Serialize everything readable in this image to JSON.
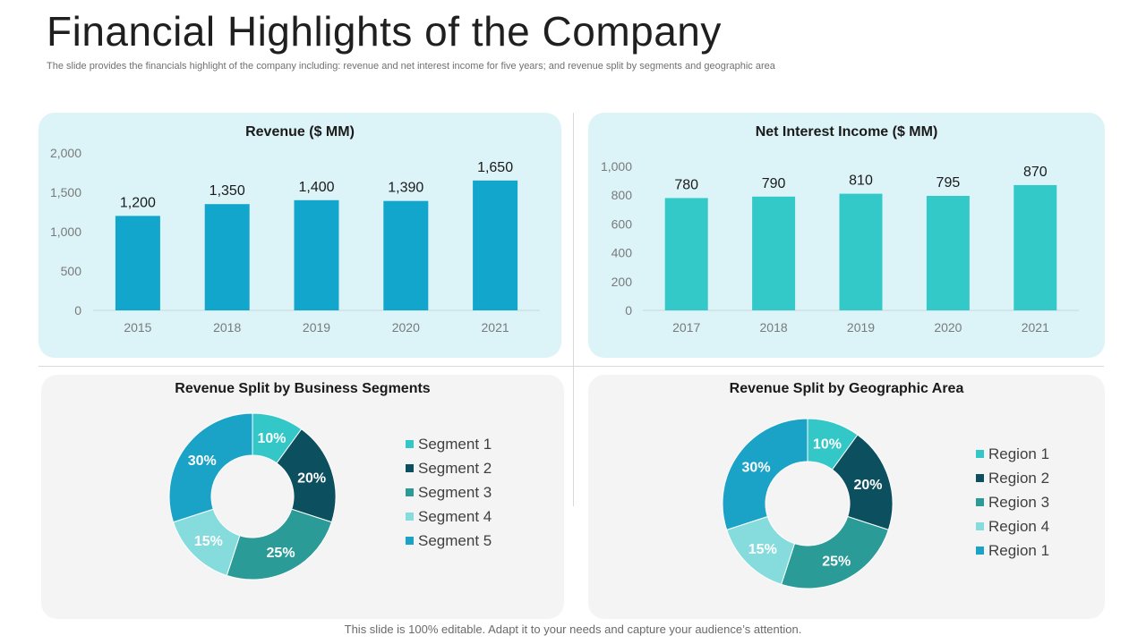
{
  "page": {
    "title": "Financial Highlights of the Company",
    "subtitle": "The slide provides the financials highlight of the company including: revenue and net interest income for five years; and revenue split by segments and geographic area",
    "footer": "This slide is 100% editable. Adapt it to your needs and capture your audience’s attention."
  },
  "colors": {
    "revenue_bar": "#12a6cc",
    "nii_bar": "#33c9c9",
    "donut": [
      "#33c7c7",
      "#0c4f5f",
      "#2a9b96",
      "#86dcdc",
      "#1aa3c7"
    ]
  },
  "chart_data": [
    {
      "type": "bar",
      "title": "Revenue ($ MM)",
      "categories": [
        "2015",
        "2018",
        "2019",
        "2020",
        "2021"
      ],
      "values": [
        1200,
        1350,
        1400,
        1390,
        1650
      ],
      "value_labels": [
        "1,200",
        "1,350",
        "1,400",
        "1,390",
        "1,650"
      ],
      "ylim": [
        0,
        2000
      ],
      "yticks": [
        0,
        500,
        1000,
        1500,
        2000
      ],
      "ytick_labels": [
        "0",
        "500",
        "1,000",
        "1,500",
        "2,000"
      ],
      "xlabel": "",
      "ylabel": ""
    },
    {
      "type": "bar",
      "title": "Net Interest  Income ($ MM)",
      "categories": [
        "2017",
        "2018",
        "2019",
        "2020",
        "2021"
      ],
      "values": [
        780,
        790,
        810,
        795,
        870
      ],
      "value_labels": [
        "780",
        "790",
        "810",
        "795",
        "870"
      ],
      "ylim": [
        0,
        1000
      ],
      "yticks": [
        0,
        200,
        400,
        600,
        800,
        1000
      ],
      "ytick_labels": [
        "0",
        "200",
        "400",
        "600",
        "800",
        "1,000"
      ],
      "xlabel": "",
      "ylabel": ""
    },
    {
      "type": "pie",
      "title": "Revenue Split by Business Segments",
      "labels": [
        "Segment 1",
        "Segment 2",
        "Segment 3",
        "Segment 4",
        "Segment 5"
      ],
      "values": [
        10,
        20,
        25,
        15,
        30
      ],
      "value_labels": [
        "10%",
        "20%",
        "25%",
        "15%",
        "30%"
      ]
    },
    {
      "type": "pie",
      "title": "Revenue Split by Geographic Area",
      "labels": [
        "Region 1",
        "Region 2",
        "Region 3",
        "Region 4",
        "Region 1"
      ],
      "values": [
        10,
        20,
        25,
        15,
        30
      ],
      "value_labels": [
        "10%",
        "20%",
        "25%",
        "15%",
        "30%"
      ]
    }
  ]
}
